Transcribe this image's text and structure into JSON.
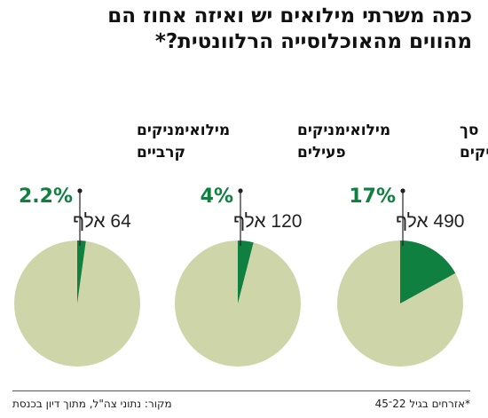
{
  "title_lines": [
    "כמה משרתי מילואים יש ואיזה אחוז הם",
    "מהווים מהאוכלוסייה הרלוונטית?*"
  ],
  "footnote": "*אזרחים בגיל 22־45",
  "source": "מקור: נתוני צה\"ל, מתוך דיון בכנסת",
  "colors": {
    "slice": "#0f8040",
    "rest": "#ced5a9",
    "pct_text": "#0f8040"
  },
  "chart_data": [
    {
      "type": "pie",
      "title_lines": [
        "סך",
        "המילואימניקים"
      ],
      "percent_label": "17%",
      "count_label": "490 אלף",
      "slices": [
        {
          "value": 17
        },
        {
          "value": 83
        }
      ]
    },
    {
      "type": "pie",
      "title_lines": [
        "מילואימניקים",
        "פעילים"
      ],
      "percent_label": "4%",
      "count_label": "120 אלף",
      "slices": [
        {
          "value": 4
        },
        {
          "value": 96
        }
      ]
    },
    {
      "type": "pie",
      "title_lines": [
        "מילואימניקים",
        "קרביים"
      ],
      "percent_label": "2.2%",
      "count_label": "64 אלף",
      "slices": [
        {
          "value": 2.2
        },
        {
          "value": 97.8
        }
      ]
    }
  ]
}
